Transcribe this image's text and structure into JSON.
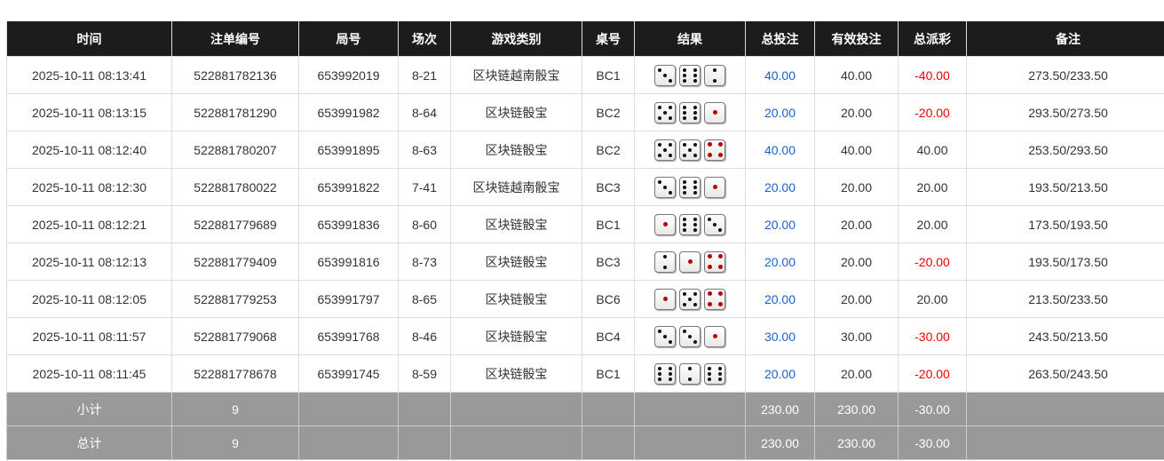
{
  "headers": [
    "时间",
    "注单编号",
    "局号",
    "场次",
    "游戏类别",
    "桌号",
    "结果",
    "总投注",
    "有效投注",
    "总派彩",
    "备注"
  ],
  "rows": [
    {
      "time": "2025-10-11 08:13:41",
      "bet_id": "522881782136",
      "round": "653992019",
      "session": "8-21",
      "game": "区块链越南骰宝",
      "table": "BC1",
      "dice": [
        3,
        6,
        2
      ],
      "total": "40.00",
      "valid": "40.00",
      "payout": "-40.00",
      "note": "273.50/233.50"
    },
    {
      "time": "2025-10-11 08:13:15",
      "bet_id": "522881781290",
      "round": "653991982",
      "session": "8-64",
      "game": "区块链骰宝",
      "table": "BC2",
      "dice": [
        5,
        6,
        1
      ],
      "total": "20.00",
      "valid": "20.00",
      "payout": "-20.00",
      "note": "293.50/273.50"
    },
    {
      "time": "2025-10-11 08:12:40",
      "bet_id": "522881780207",
      "round": "653991895",
      "session": "8-63",
      "game": "区块链骰宝",
      "table": "BC2",
      "dice": [
        5,
        5,
        4
      ],
      "total": "40.00",
      "valid": "40.00",
      "payout": "40.00",
      "note": "253.50/293.50"
    },
    {
      "time": "2025-10-11 08:12:30",
      "bet_id": "522881780022",
      "round": "653991822",
      "session": "7-41",
      "game": "区块链越南骰宝",
      "table": "BC3",
      "dice": [
        3,
        6,
        1
      ],
      "total": "20.00",
      "valid": "20.00",
      "payout": "20.00",
      "note": "193.50/213.50"
    },
    {
      "time": "2025-10-11 08:12:21",
      "bet_id": "522881779689",
      "round": "653991836",
      "session": "8-60",
      "game": "区块链骰宝",
      "table": "BC1",
      "dice": [
        1,
        6,
        3
      ],
      "total": "20.00",
      "valid": "20.00",
      "payout": "20.00",
      "note": "173.50/193.50"
    },
    {
      "time": "2025-10-11 08:12:13",
      "bet_id": "522881779409",
      "round": "653991816",
      "session": "8-73",
      "game": "区块链骰宝",
      "table": "BC3",
      "dice": [
        2,
        1,
        4
      ],
      "total": "20.00",
      "valid": "20.00",
      "payout": "-20.00",
      "note": "193.50/173.50"
    },
    {
      "time": "2025-10-11 08:12:05",
      "bet_id": "522881779253",
      "round": "653991797",
      "session": "8-65",
      "game": "区块链骰宝",
      "table": "BC6",
      "dice": [
        1,
        5,
        4
      ],
      "total": "20.00",
      "valid": "20.00",
      "payout": "20.00",
      "note": "213.50/233.50"
    },
    {
      "time": "2025-10-11 08:11:57",
      "bet_id": "522881779068",
      "round": "653991768",
      "session": "8-46",
      "game": "区块链骰宝",
      "table": "BC4",
      "dice": [
        3,
        3,
        1
      ],
      "total": "30.00",
      "valid": "30.00",
      "payout": "-30.00",
      "note": "243.50/213.50"
    },
    {
      "time": "2025-10-11 08:11:45",
      "bet_id": "522881778678",
      "round": "653991745",
      "session": "8-59",
      "game": "区块链骰宝",
      "table": "BC1",
      "dice": [
        6,
        2,
        6
      ],
      "total": "20.00",
      "valid": "20.00",
      "payout": "-20.00",
      "note": "263.50/243.50"
    }
  ],
  "summary": [
    {
      "label": "小计",
      "count": "9",
      "total": "230.00",
      "valid": "230.00",
      "payout": "-30.00"
    },
    {
      "label": "总计",
      "count": "9",
      "total": "230.00",
      "valid": "230.00",
      "payout": "-30.00"
    }
  ],
  "colors": {
    "header_bg": "#1c1c1c",
    "bet_blue": "#1a5fd6",
    "negative_red": "#e00000",
    "summary_bg": "#999999"
  }
}
